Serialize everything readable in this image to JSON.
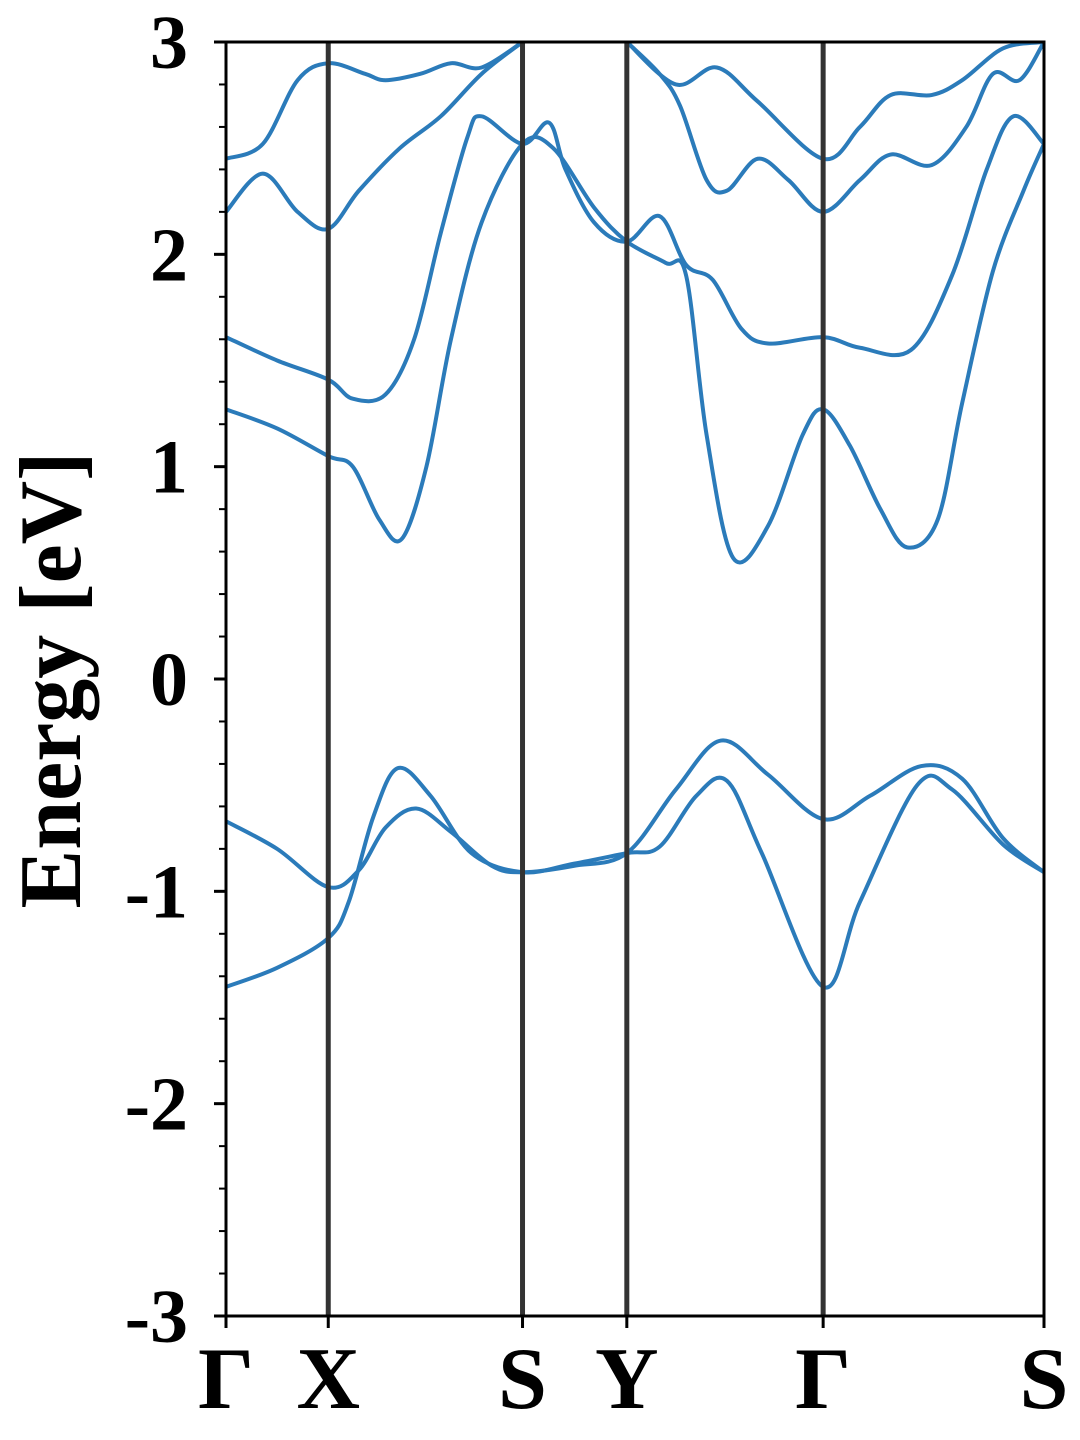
{
  "chart_data": {
    "type": "line",
    "title": "",
    "xlabel": "",
    "ylabel": "Energy [eV]",
    "ylim": [
      -3,
      3
    ],
    "y_ticks": [
      3,
      2,
      1,
      0,
      -1,
      -2,
      -3
    ],
    "y_tick_labels": [
      "3",
      "2",
      "1",
      "0",
      "-1",
      "-2",
      "-3"
    ],
    "y_minor_step": 0.2,
    "grid": false,
    "legend": "none",
    "line_color": "#2b7bba",
    "kpath_line_color": "#333333",
    "kpoints": [
      {
        "label": "Γ",
        "x": 0.0
      },
      {
        "label": "X",
        "x": 0.5
      },
      {
        "label": "S",
        "x": 1.45
      },
      {
        "label": "Y",
        "x": 1.96
      },
      {
        "label": "Γ",
        "x": 2.92
      },
      {
        "label": "S",
        "x": 4.0
      }
    ],
    "xlim": [
      0,
      4.0
    ],
    "series": [
      {
        "values": [
          [
            0,
            -1.45
          ],
          [
            0.25,
            -1.36
          ],
          [
            0.5,
            -1.22
          ],
          [
            0.6,
            -1.05
          ],
          [
            0.72,
            -0.65
          ],
          [
            0.84,
            -0.42
          ],
          [
            1.0,
            -0.55
          ],
          [
            1.2,
            -0.82
          ],
          [
            1.45,
            -0.91
          ],
          [
            1.7,
            -0.87
          ],
          [
            1.96,
            -0.82
          ],
          [
            2.12,
            -0.79
          ],
          [
            2.3,
            -0.55
          ],
          [
            2.45,
            -0.48
          ],
          [
            2.62,
            -0.82
          ],
          [
            2.92,
            -1.45
          ],
          [
            3.1,
            -1.05
          ],
          [
            3.38,
            -0.5
          ],
          [
            3.55,
            -0.52
          ],
          [
            3.8,
            -0.78
          ],
          [
            4.0,
            -0.91
          ]
        ]
      },
      {
        "values": [
          [
            0,
            -0.67
          ],
          [
            0.25,
            -0.8
          ],
          [
            0.5,
            -0.98
          ],
          [
            0.65,
            -0.9
          ],
          [
            0.78,
            -0.7
          ],
          [
            0.93,
            -0.61
          ],
          [
            1.1,
            -0.72
          ],
          [
            1.3,
            -0.88
          ],
          [
            1.45,
            -0.91
          ],
          [
            1.7,
            -0.88
          ],
          [
            1.96,
            -0.82
          ],
          [
            2.2,
            -0.52
          ],
          [
            2.42,
            -0.29
          ],
          [
            2.65,
            -0.45
          ],
          [
            2.92,
            -0.66
          ],
          [
            3.15,
            -0.55
          ],
          [
            3.4,
            -0.41
          ],
          [
            3.6,
            -0.47
          ],
          [
            3.8,
            -0.75
          ],
          [
            4.0,
            -0.91
          ]
        ]
      },
      {
        "values": [
          [
            0,
            1.27
          ],
          [
            0.25,
            1.18
          ],
          [
            0.5,
            1.05
          ],
          [
            0.62,
            1.0
          ],
          [
            0.75,
            0.75
          ],
          [
            0.86,
            0.66
          ],
          [
            0.98,
            1.0
          ],
          [
            1.1,
            1.6
          ],
          [
            1.25,
            2.15
          ],
          [
            1.45,
            2.52
          ],
          [
            1.6,
            2.5
          ],
          [
            1.8,
            2.22
          ],
          [
            1.96,
            2.06
          ],
          [
            2.15,
            1.96
          ],
          [
            2.25,
            1.9
          ],
          [
            2.35,
            1.15
          ],
          [
            2.48,
            0.57
          ],
          [
            2.65,
            0.72
          ],
          [
            2.82,
            1.15
          ],
          [
            2.92,
            1.27
          ],
          [
            3.05,
            1.1
          ],
          [
            3.2,
            0.8
          ],
          [
            3.33,
            0.62
          ],
          [
            3.48,
            0.75
          ],
          [
            3.6,
            1.3
          ],
          [
            3.75,
            1.92
          ],
          [
            3.9,
            2.3
          ],
          [
            4.0,
            2.52
          ]
        ]
      },
      {
        "values": [
          [
            0,
            1.61
          ],
          [
            0.25,
            1.5
          ],
          [
            0.5,
            1.41
          ],
          [
            0.62,
            1.32
          ],
          [
            0.78,
            1.34
          ],
          [
            0.92,
            1.6
          ],
          [
            1.05,
            2.1
          ],
          [
            1.18,
            2.55
          ],
          [
            1.25,
            2.65
          ],
          [
            1.45,
            2.52
          ],
          [
            1.58,
            2.62
          ],
          [
            1.66,
            2.4
          ],
          [
            1.8,
            2.15
          ],
          [
            1.96,
            2.06
          ],
          [
            2.12,
            2.18
          ],
          [
            2.25,
            1.95
          ],
          [
            2.38,
            1.88
          ],
          [
            2.52,
            1.65
          ],
          [
            2.65,
            1.58
          ],
          [
            2.92,
            1.61
          ],
          [
            3.1,
            1.56
          ],
          [
            3.35,
            1.55
          ],
          [
            3.55,
            1.9
          ],
          [
            3.72,
            2.4
          ],
          [
            3.85,
            2.65
          ],
          [
            4.0,
            2.52
          ]
        ]
      },
      {
        "values": [
          [
            0,
            2.2
          ],
          [
            0.18,
            2.38
          ],
          [
            0.35,
            2.2
          ],
          [
            0.5,
            2.12
          ],
          [
            0.65,
            2.3
          ],
          [
            0.85,
            2.5
          ],
          [
            1.05,
            2.65
          ],
          [
            1.25,
            2.85
          ],
          [
            1.45,
            3.0
          ]
        ]
      },
      {
        "values": [
          [
            0,
            2.45
          ],
          [
            0.18,
            2.52
          ],
          [
            0.35,
            2.82
          ],
          [
            0.5,
            2.9
          ],
          [
            0.68,
            2.85
          ],
          [
            0.78,
            2.82
          ],
          [
            0.95,
            2.85
          ],
          [
            1.1,
            2.9
          ],
          [
            1.25,
            2.88
          ],
          [
            1.45,
            3.0
          ]
        ]
      },
      {
        "values": [
          [
            1.96,
            3.0
          ],
          [
            2.12,
            2.85
          ],
          [
            2.22,
            2.7
          ],
          [
            2.35,
            2.35
          ],
          [
            2.45,
            2.3
          ],
          [
            2.6,
            2.45
          ],
          [
            2.75,
            2.35
          ],
          [
            2.92,
            2.2
          ],
          [
            3.1,
            2.35
          ],
          [
            3.25,
            2.47
          ],
          [
            3.45,
            2.42
          ],
          [
            3.62,
            2.6
          ],
          [
            3.75,
            2.85
          ],
          [
            3.88,
            2.82
          ],
          [
            4.0,
            3.0
          ]
        ]
      },
      {
        "values": [
          [
            1.96,
            3.0
          ],
          [
            2.2,
            2.8
          ],
          [
            2.4,
            2.88
          ],
          [
            2.6,
            2.72
          ],
          [
            2.92,
            2.45
          ],
          [
            3.1,
            2.6
          ],
          [
            3.25,
            2.75
          ],
          [
            3.45,
            2.75
          ],
          [
            3.6,
            2.82
          ],
          [
            3.8,
            2.97
          ],
          [
            4.0,
            3.0
          ]
        ]
      }
    ]
  }
}
